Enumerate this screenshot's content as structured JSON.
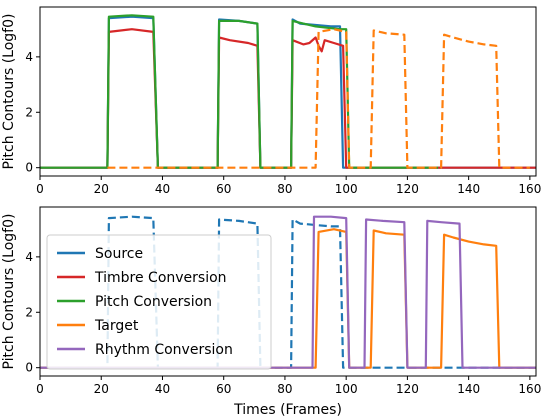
{
  "chart_data": [
    {
      "type": "line",
      "xlabel": "",
      "ylabel": "Pitch Contours (Logf0)",
      "xlim": [
        0,
        162
      ],
      "ylim": [
        -0.3,
        5.8
      ],
      "xticks": [
        0,
        20,
        40,
        60,
        80,
        100,
        120,
        140,
        160
      ],
      "yticks": [
        0,
        2,
        4
      ],
      "legend": "none",
      "series": [
        {
          "name": "Source",
          "color": "#1f77b4",
          "style": "solid",
          "points": [
            [
              0,
              0
            ],
            [
              22,
              0
            ],
            [
              22.5,
              5.4
            ],
            [
              30,
              5.45
            ],
            [
              37,
              5.4
            ],
            [
              38.5,
              0
            ],
            [
              58,
              0
            ],
            [
              58.5,
              5.35
            ],
            [
              65,
              5.3
            ],
            [
              71,
              5.2
            ],
            [
              72,
              0
            ],
            [
              82,
              0
            ],
            [
              82.5,
              5.35
            ],
            [
              85,
              5.2
            ],
            [
              90,
              5.15
            ],
            [
              95,
              5.1
            ],
            [
              98,
              5.1
            ],
            [
              99,
              0
            ],
            [
              162,
              0
            ]
          ]
        },
        {
          "name": "Timbre Conversion",
          "color": "#d62728",
          "style": "solid",
          "points": [
            [
              0,
              0
            ],
            [
              22,
              0
            ],
            [
              22.5,
              4.9
            ],
            [
              30,
              5.0
            ],
            [
              37,
              4.9
            ],
            [
              38.5,
              0
            ],
            [
              58,
              0
            ],
            [
              58.5,
              4.7
            ],
            [
              62,
              4.6
            ],
            [
              68,
              4.5
            ],
            [
              71,
              4.4
            ],
            [
              72,
              0
            ],
            [
              82,
              0
            ],
            [
              82.5,
              4.6
            ],
            [
              86,
              4.45
            ],
            [
              88,
              4.5
            ],
            [
              90,
              4.7
            ],
            [
              91,
              4.4
            ],
            [
              92,
              4.2
            ],
            [
              93,
              4.6
            ],
            [
              96,
              4.5
            ],
            [
              99,
              4.4
            ],
            [
              100,
              0
            ],
            [
              162,
              0
            ]
          ]
        },
        {
          "name": "Pitch Conversion",
          "color": "#2ca02c",
          "style": "solid",
          "points": [
            [
              0,
              0
            ],
            [
              22,
              0
            ],
            [
              22.5,
              5.45
            ],
            [
              30,
              5.5
            ],
            [
              37,
              5.45
            ],
            [
              38.5,
              0
            ],
            [
              58,
              0
            ],
            [
              58.5,
              5.3
            ],
            [
              65,
              5.3
            ],
            [
              71,
              5.2
            ],
            [
              72,
              0
            ],
            [
              82,
              0
            ],
            [
              82.5,
              5.3
            ],
            [
              86,
              5.2
            ],
            [
              90,
              5.1
            ],
            [
              94,
              5.05
            ],
            [
              98,
              5.0
            ],
            [
              100,
              5.0
            ],
            [
              101,
              0
            ],
            [
              130,
              0
            ]
          ]
        },
        {
          "name": "Target",
          "color": "#ff7f0e",
          "style": "dashed",
          "points": [
            [
              22,
              0
            ],
            [
              90,
              0
            ],
            [
              91,
              4.9
            ],
            [
              96,
              5.0
            ],
            [
              100,
              4.9
            ],
            [
              101,
              0
            ],
            [
              108,
              0
            ],
            [
              109,
              4.95
            ],
            [
              113,
              4.85
            ],
            [
              119,
              4.8
            ],
            [
              120,
              0
            ],
            [
              131,
              0
            ],
            [
              132,
              4.8
            ],
            [
              135,
              4.7
            ],
            [
              140,
              4.55
            ],
            [
              145,
              4.45
            ],
            [
              149,
              4.4
            ],
            [
              150,
              0
            ],
            [
              160,
              0
            ]
          ]
        }
      ]
    },
    {
      "type": "line",
      "xlabel": "Times (Frames)",
      "ylabel": "Pitch Contours (Logf0)",
      "xlim": [
        0,
        162
      ],
      "ylim": [
        -0.3,
        5.8
      ],
      "xticks": [
        0,
        20,
        40,
        60,
        80,
        100,
        120,
        140,
        160
      ],
      "yticks": [
        0,
        2,
        4
      ],
      "legend": "lower-left",
      "series": [
        {
          "name": "Source",
          "color": "#1f77b4",
          "style": "dashed",
          "points": [
            [
              0,
              0
            ],
            [
              22,
              0
            ],
            [
              22.5,
              5.4
            ],
            [
              30,
              5.45
            ],
            [
              37,
              5.4
            ],
            [
              38.5,
              0
            ],
            [
              58,
              0
            ],
            [
              58.5,
              5.35
            ],
            [
              65,
              5.3
            ],
            [
              71,
              5.2
            ],
            [
              72,
              0
            ],
            [
              82,
              0
            ],
            [
              82.5,
              5.35
            ],
            [
              85,
              5.2
            ],
            [
              90,
              5.15
            ],
            [
              95,
              5.1
            ],
            [
              98,
              5.1
            ],
            [
              99,
              0
            ],
            [
              162,
              0
            ]
          ]
        },
        {
          "name": "Target",
          "color": "#ff7f0e",
          "style": "solid",
          "points": [
            [
              0,
              0
            ],
            [
              90,
              0
            ],
            [
              91,
              4.9
            ],
            [
              96,
              5.0
            ],
            [
              100,
              4.9
            ],
            [
              101,
              0
            ],
            [
              108,
              0
            ],
            [
              109,
              4.95
            ],
            [
              113,
              4.85
            ],
            [
              119,
              4.8
            ],
            [
              120,
              0
            ],
            [
              131,
              0
            ],
            [
              132,
              4.8
            ],
            [
              135,
              4.7
            ],
            [
              140,
              4.55
            ],
            [
              145,
              4.45
            ],
            [
              149,
              4.4
            ],
            [
              150,
              0
            ],
            [
              162,
              0
            ]
          ]
        },
        {
          "name": "Rhythm Conversion",
          "color": "#9467bd",
          "style": "solid",
          "points": [
            [
              0,
              0
            ],
            [
              89,
              0
            ],
            [
              89.5,
              5.45
            ],
            [
              95,
              5.45
            ],
            [
              100,
              5.4
            ],
            [
              101,
              0
            ],
            [
              106,
              0
            ],
            [
              106.5,
              5.35
            ],
            [
              112,
              5.3
            ],
            [
              119,
              5.25
            ],
            [
              120,
              0
            ],
            [
              126,
              0
            ],
            [
              126.5,
              5.3
            ],
            [
              131,
              5.25
            ],
            [
              137,
              5.2
            ],
            [
              138,
              0
            ],
            [
              162,
              0
            ]
          ]
        }
      ]
    }
  ],
  "legend_entries": [
    {
      "label": "Source",
      "color": "#1f77b4"
    },
    {
      "label": "Timbre Conversion",
      "color": "#d62728"
    },
    {
      "label": "Pitch Conversion",
      "color": "#2ca02c"
    },
    {
      "label": "Target",
      "color": "#ff7f0e"
    },
    {
      "label": "Rhythm Conversion",
      "color": "#9467bd"
    }
  ]
}
